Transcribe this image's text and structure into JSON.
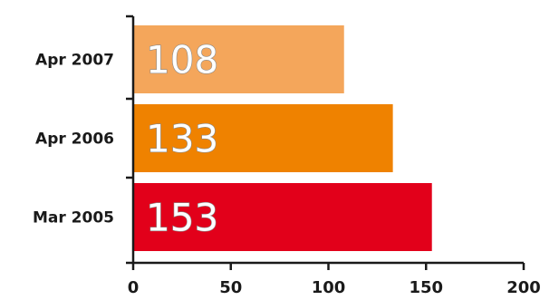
{
  "chart_data": {
    "type": "bar",
    "orientation": "horizontal",
    "categories": [
      "Apr 2007",
      "Apr 2006",
      "Mar 2005"
    ],
    "values": [
      108,
      133,
      153
    ],
    "data_labels": [
      "108",
      "133",
      "153"
    ],
    "colors": [
      "#f4a65b",
      "#ef8200",
      "#e2001a"
    ],
    "xlim": [
      0,
      200
    ],
    "x_ticks": [
      0,
      50,
      100,
      150,
      200
    ],
    "x_tick_labels": [
      "0",
      "50",
      "100",
      "150",
      "200"
    ],
    "title": "",
    "xlabel": "",
    "ylabel": "",
    "grid": false,
    "legend": "none"
  }
}
